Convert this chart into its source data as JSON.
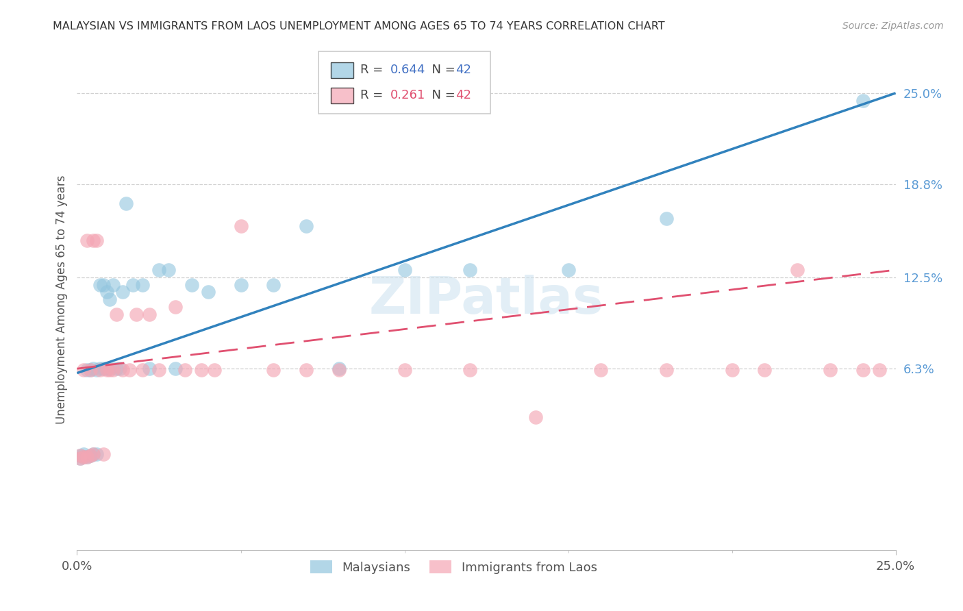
{
  "title": "MALAYSIAN VS IMMIGRANTS FROM LAOS UNEMPLOYMENT AMONG AGES 65 TO 74 YEARS CORRELATION CHART",
  "source": "Source: ZipAtlas.com",
  "ylabel": "Unemployment Among Ages 65 to 74 years",
  "blue_color": "#92c5de",
  "pink_color": "#f4a6b4",
  "blue_line_color": "#3182bd",
  "pink_line_color": "#e05070",
  "watermark": "ZIPatlas",
  "watermark_color": "#d0e4f0",
  "bottom_legend1": "Malaysians",
  "bottom_legend2": "Immigrants from Laos",
  "xlim": [
    0.0,
    0.25
  ],
  "ylim": [
    -0.06,
    0.28
  ],
  "yticks": [
    0.063,
    0.125,
    0.188,
    0.25
  ],
  "ytick_labels": [
    "6.3%",
    "12.5%",
    "18.8%",
    "25.0%"
  ],
  "xticks": [
    0.0,
    0.25
  ],
  "xtick_labels": [
    "0.0%",
    "25.0%"
  ],
  "malaysian_x": [
    0.001,
    0.001,
    0.002,
    0.002,
    0.003,
    0.003,
    0.004,
    0.004,
    0.005,
    0.005,
    0.006,
    0.006,
    0.007,
    0.007,
    0.008,
    0.008,
    0.009,
    0.009,
    0.01,
    0.01,
    0.011,
    0.012,
    0.013,
    0.014,
    0.015,
    0.017,
    0.02,
    0.022,
    0.025,
    0.028,
    0.03,
    0.035,
    0.04,
    0.05,
    0.06,
    0.07,
    0.08,
    0.1,
    0.12,
    0.15,
    0.18,
    0.24
  ],
  "malaysian_y": [
    0.002,
    0.004,
    0.003,
    0.005,
    0.003,
    0.062,
    0.004,
    0.062,
    0.005,
    0.063,
    0.005,
    0.062,
    0.063,
    0.12,
    0.063,
    0.12,
    0.063,
    0.115,
    0.063,
    0.11,
    0.12,
    0.063,
    0.063,
    0.115,
    0.175,
    0.12,
    0.12,
    0.063,
    0.13,
    0.13,
    0.063,
    0.12,
    0.115,
    0.12,
    0.12,
    0.16,
    0.063,
    0.13,
    0.13,
    0.13,
    0.165,
    0.245
  ],
  "laos_x": [
    0.001,
    0.001,
    0.002,
    0.002,
    0.003,
    0.003,
    0.004,
    0.004,
    0.005,
    0.005,
    0.006,
    0.007,
    0.008,
    0.009,
    0.01,
    0.011,
    0.012,
    0.014,
    0.016,
    0.018,
    0.02,
    0.022,
    0.025,
    0.03,
    0.033,
    0.038,
    0.042,
    0.05,
    0.06,
    0.07,
    0.08,
    0.1,
    0.12,
    0.14,
    0.16,
    0.18,
    0.2,
    0.21,
    0.22,
    0.23,
    0.24,
    0.245
  ],
  "laos_y": [
    0.002,
    0.004,
    0.003,
    0.062,
    0.003,
    0.15,
    0.004,
    0.062,
    0.005,
    0.15,
    0.15,
    0.062,
    0.005,
    0.062,
    0.062,
    0.062,
    0.1,
    0.062,
    0.062,
    0.1,
    0.062,
    0.1,
    0.062,
    0.105,
    0.062,
    0.062,
    0.062,
    0.16,
    0.062,
    0.062,
    0.062,
    0.062,
    0.062,
    0.03,
    0.062,
    0.062,
    0.062,
    0.062,
    0.13,
    0.062,
    0.062,
    0.062
  ],
  "blue_line_x": [
    0.0,
    0.25
  ],
  "blue_line_y": [
    0.06,
    0.25
  ],
  "pink_line_x": [
    0.0,
    0.25
  ],
  "pink_line_y": [
    0.063,
    0.13
  ]
}
